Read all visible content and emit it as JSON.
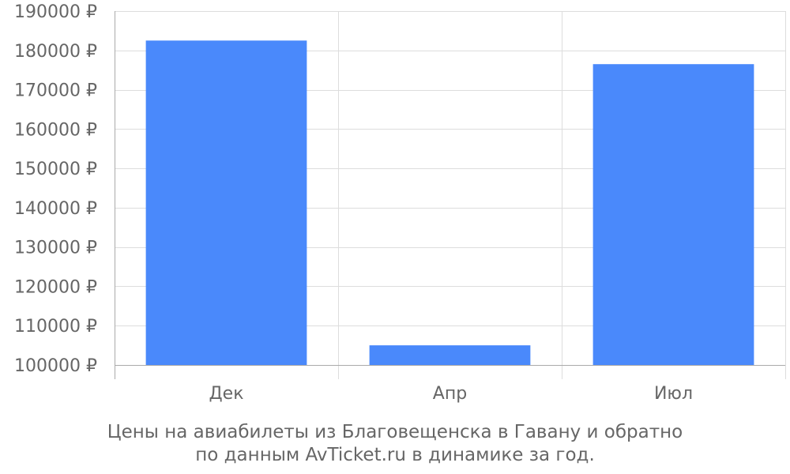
{
  "chart_data": {
    "type": "bar",
    "categories": [
      "Дек",
      "Апр",
      "Июл"
    ],
    "values": [
      182500,
      105000,
      176500
    ],
    "y_ticks": [
      100000,
      110000,
      120000,
      130000,
      140000,
      150000,
      160000,
      170000,
      180000,
      190000
    ],
    "y_tick_suffix": " ₽",
    "ylim": [
      100000,
      190000
    ],
    "grid": true,
    "bar_color": "#4a89fb"
  },
  "caption": {
    "line1": "Цены на авиабилеты из Благовещенска в Гавану и обратно",
    "line2": "по данным AvTicket.ru в динамике за год."
  }
}
